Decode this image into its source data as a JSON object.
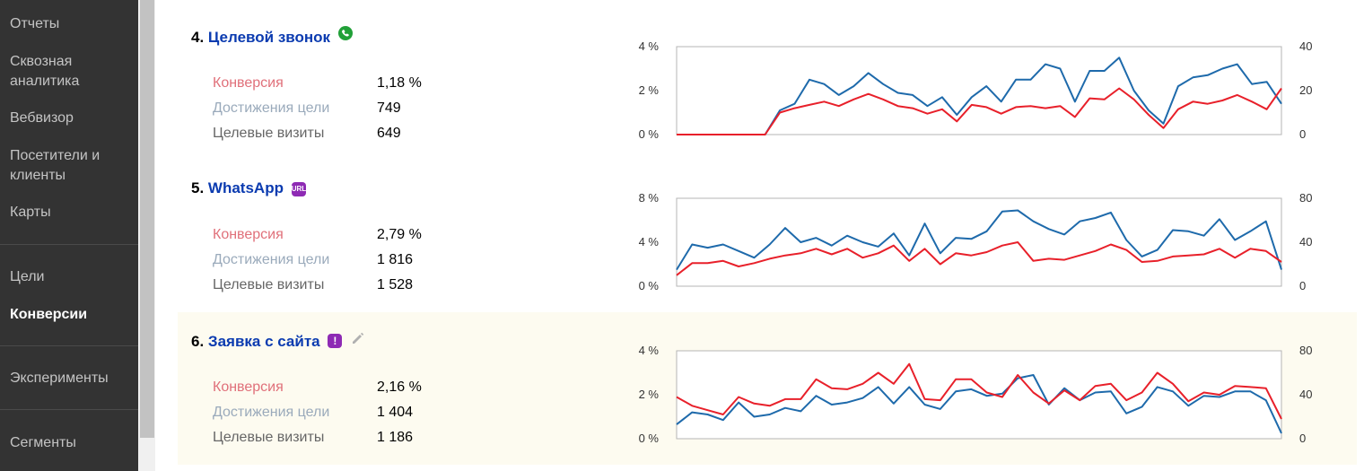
{
  "sidebar": {
    "items": [
      {
        "label": "Отчеты"
      },
      {
        "label": "Сквозная аналитика"
      },
      {
        "label": "Вебвизор"
      },
      {
        "label": "Посетители и клиенты"
      },
      {
        "label": "Карты"
      },
      {
        "label": "Цели"
      },
      {
        "label": "Конверсии",
        "active": true
      },
      {
        "label": "Эксперименты"
      },
      {
        "label": "Сегменты"
      }
    ]
  },
  "colors": {
    "conversion_line": "#e8202a",
    "reach_line": "#1e6aab",
    "title_link": "#0b3bb0",
    "highlight_bg": "#fdfbf0"
  },
  "goals": [
    {
      "number": "4.",
      "name": "Целевой звонок",
      "icon": "phone-icon",
      "metrics": {
        "conversion_label": "Конверсия",
        "conversion_value": "1,18 %",
        "reach_label": "Достижения цели",
        "reach_value": "749",
        "visits_label": "Целевые визиты",
        "visits_value": "649"
      },
      "chart": {
        "left_ticks": [
          "4 %",
          "2 %",
          "0 %"
        ],
        "right_ticks": [
          "40",
          "20",
          "0"
        ],
        "left_max": 4,
        "right_max": 40,
        "conversion": [
          0,
          0,
          0,
          0,
          0,
          0,
          0,
          1.0,
          1.2,
          1.35,
          1.5,
          1.3,
          1.6,
          1.85,
          1.6,
          1.3,
          1.2,
          0.95,
          1.15,
          0.6,
          1.35,
          1.25,
          0.95,
          1.25,
          1.3,
          1.2,
          1.3,
          0.8,
          1.65,
          1.6,
          2.1,
          1.6,
          0.9,
          0.3,
          1.15,
          1.5,
          1.4,
          1.55,
          1.8,
          1.5,
          1.15,
          2.1
        ],
        "reach": [
          0,
          0,
          0,
          0,
          0,
          0,
          0,
          11,
          14,
          25,
          23,
          18,
          22,
          28,
          23,
          19,
          18,
          13,
          17,
          9,
          17,
          22,
          15,
          25,
          25,
          32,
          30,
          15,
          29,
          29,
          35,
          20,
          11,
          5,
          22,
          26,
          27,
          30,
          32,
          23,
          24,
          14
        ]
      }
    },
    {
      "number": "5.",
      "name": "WhatsApp",
      "icon": "url-icon",
      "metrics": {
        "conversion_label": "Конверсия",
        "conversion_value": "2,79 %",
        "reach_label": "Достижения цели",
        "reach_value": "1 816",
        "visits_label": "Целевые визиты",
        "visits_value": "1 528"
      },
      "chart": {
        "left_ticks": [
          "8 %",
          "4 %",
          "0 %"
        ],
        "right_ticks": [
          "80",
          "40",
          "0"
        ],
        "left_max": 8,
        "right_max": 80,
        "conversion": [
          1.0,
          2.1,
          2.1,
          2.3,
          1.8,
          2.1,
          2.5,
          2.8,
          3.0,
          3.4,
          2.9,
          3.4,
          2.6,
          3.0,
          3.7,
          2.3,
          3.4,
          2.0,
          3.0,
          2.8,
          3.1,
          3.7,
          4.0,
          2.3,
          2.5,
          2.4,
          2.8,
          3.2,
          3.8,
          3.3,
          2.2,
          2.3,
          2.7,
          2.8,
          2.9,
          3.4,
          2.6,
          3.4,
          3.2,
          2.2
        ],
        "reach": [
          15,
          38,
          35,
          38,
          32,
          26,
          38,
          53,
          40,
          44,
          37,
          46,
          40,
          36,
          48,
          28,
          57,
          30,
          44,
          43,
          50,
          68,
          69,
          59,
          52,
          47,
          59,
          62,
          67,
          42,
          27,
          33,
          51,
          50,
          46,
          61,
          42,
          50,
          59,
          15
        ]
      }
    },
    {
      "number": "6.",
      "name": "Заявка с сайта",
      "icon": "exclamation-icon",
      "metrics": {
        "conversion_label": "Конверсия",
        "conversion_value": "2,16 %",
        "reach_label": "Достижения цели",
        "reach_value": "1 404",
        "visits_label": "Целевые визиты",
        "visits_value": "1 186"
      },
      "chart": {
        "left_ticks": [
          "4 %",
          "2 %",
          "0 %"
        ],
        "right_ticks": [
          "80",
          "40",
          "0"
        ],
        "left_max": 4,
        "right_max": 80,
        "conversion": [
          1.9,
          1.5,
          1.3,
          1.1,
          1.9,
          1.6,
          1.5,
          1.8,
          1.8,
          2.7,
          2.3,
          2.25,
          2.5,
          3.0,
          2.5,
          3.4,
          1.8,
          1.75,
          2.7,
          2.7,
          2.1,
          1.9,
          2.9,
          2.1,
          1.6,
          2.2,
          1.75,
          2.4,
          2.5,
          1.75,
          2.1,
          3.0,
          2.5,
          1.7,
          2.1,
          2.0,
          2.4,
          2.35,
          2.3,
          0.9
        ],
        "reach": [
          13,
          24,
          22,
          17,
          33,
          20,
          22,
          28,
          25,
          39,
          31,
          33,
          37,
          47,
          32,
          47,
          31,
          27,
          43,
          45,
          39,
          41,
          55,
          58,
          31,
          46,
          35,
          42,
          43,
          23,
          29,
          47,
          43,
          30,
          39,
          38,
          43,
          43,
          35,
          5
        ]
      }
    }
  ]
}
